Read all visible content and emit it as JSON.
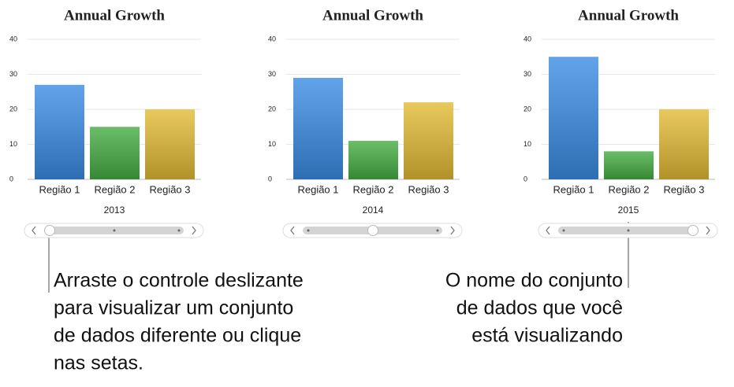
{
  "chart_data": [
    {
      "type": "bar",
      "title": "Annual Growth",
      "categories": [
        "Região 1",
        "Região 2",
        "Região 3"
      ],
      "values": [
        27,
        15,
        20
      ],
      "colors": [
        "#3a8ce4",
        "#45ad42",
        "#e2bb35"
      ],
      "x_label": "2013",
      "ylim": [
        0,
        40
      ],
      "yticks": [
        0,
        10,
        20,
        30,
        40
      ],
      "grid": true
    },
    {
      "type": "bar",
      "title": "Annual Growth",
      "categories": [
        "Região 1",
        "Região 2",
        "Região 3"
      ],
      "values": [
        29,
        11,
        22
      ],
      "colors": [
        "#3a8ce4",
        "#45ad42",
        "#e2bb35"
      ],
      "x_label": "2014",
      "ylim": [
        0,
        40
      ],
      "yticks": [
        0,
        10,
        20,
        30,
        40
      ],
      "grid": true
    },
    {
      "type": "bar",
      "title": "Annual Growth",
      "categories": [
        "Região 1",
        "Região 2",
        "Região 3"
      ],
      "values": [
        35,
        8,
        20
      ],
      "colors": [
        "#3a8ce4",
        "#45ad42",
        "#e2bb35"
      ],
      "x_label": "2015",
      "ylim": [
        0,
        40
      ],
      "yticks": [
        0,
        10,
        20,
        30,
        40
      ],
      "grid": true
    }
  ],
  "annotations": [
    {
      "lines": [
        "Arraste o controle deslizante",
        "para visualizar um conjunto",
        "de dados diferente ou clique",
        "nas setas."
      ]
    },
    {
      "lines": [
        "O nome do conjunto",
        "de dados que você",
        "está visualizando"
      ]
    }
  ]
}
